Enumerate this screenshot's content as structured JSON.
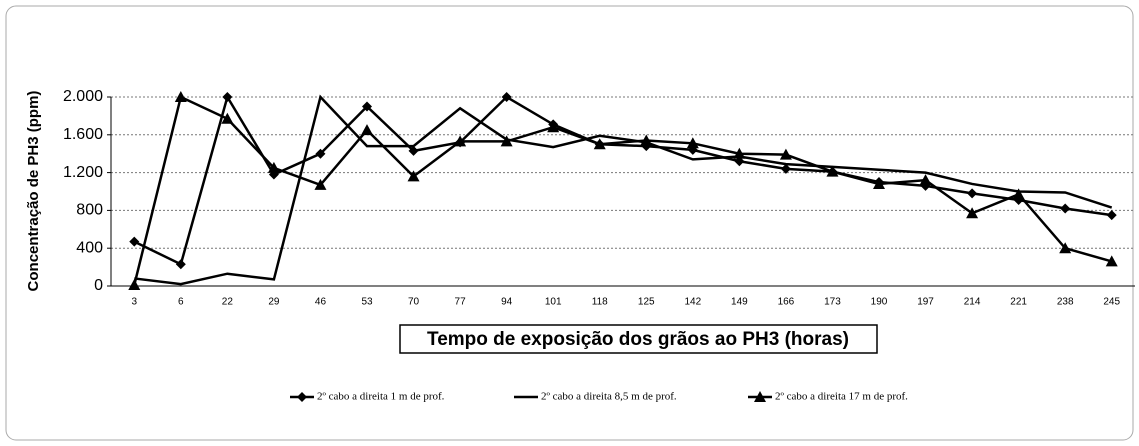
{
  "chart_data": {
    "type": "line",
    "x_label": "Tempo de exposição dos grãos ao PH3 (horas)",
    "y_label": "Concentração de PH3 (ppm)",
    "categories": [
      "3",
      "6",
      "22",
      "29",
      "46",
      "53",
      "70",
      "77",
      "94",
      "101",
      "118",
      "125",
      "142",
      "149",
      "166",
      "173",
      "190",
      "197",
      "214",
      "221",
      "238",
      "245"
    ],
    "series": [
      {
        "name": "2º cabo a direita 1 m de prof.",
        "color": "#000000",
        "marker": "diamond",
        "values": [
          470,
          230,
          2000,
          1180,
          1400,
          1900,
          1430,
          1520,
          2000,
          1710,
          1500,
          1480,
          1440,
          1320,
          1240,
          1210,
          1100,
          1060,
          980,
          910,
          820,
          750
        ]
      },
      {
        "name": "2º cabo a direita 8,5 m de prof.",
        "color": "#000000",
        "marker": "none",
        "values": [
          80,
          20,
          130,
          70,
          2000,
          1480,
          1480,
          1880,
          1550,
          1470,
          1590,
          1520,
          1340,
          1370,
          1290,
          1260,
          1230,
          1200,
          1080,
          1000,
          990,
          830
        ]
      },
      {
        "name": "2º cabo a direita 17 m de prof.",
        "color": "#000000",
        "marker": "triangle",
        "values": [
          10,
          2000,
          1770,
          1250,
          1070,
          1650,
          1160,
          1530,
          1530,
          1680,
          1500,
          1540,
          1510,
          1400,
          1390,
          1210,
          1080,
          1120,
          770,
          970,
          400,
          260
        ]
      }
    ],
    "ylim": [
      0,
      2000
    ],
    "yticks": [
      0,
      400,
      800,
      {
        "value": 1200,
        "label": "1.200"
      },
      {
        "value": 1600,
        "label": "1.600"
      },
      {
        "value": 2000,
        "label": "2.000"
      }
    ],
    "grid": true
  }
}
